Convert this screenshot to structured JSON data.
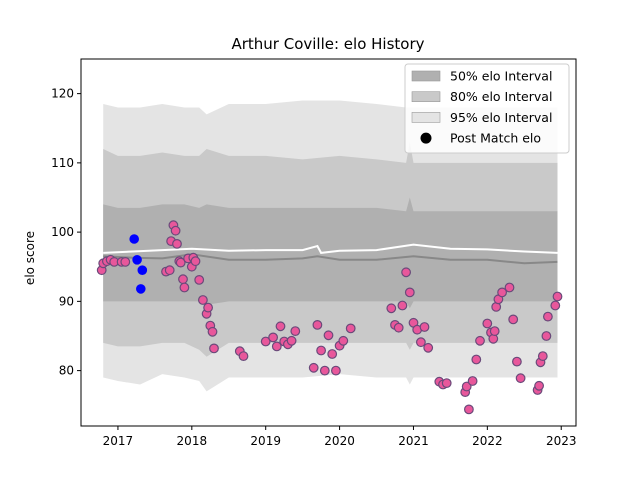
{
  "chart_data": {
    "type": "scatter",
    "title": "Arthur Coville: elo History",
    "xlabel": "",
    "ylabel": "elo score",
    "xlim": [
      2016.5,
      2023.2
    ],
    "ylim": [
      72,
      125
    ],
    "x_ticks": [
      2017,
      2018,
      2019,
      2020,
      2021,
      2022,
      2023
    ],
    "x_tick_labels": [
      "2017",
      "2018",
      "2019",
      "2020",
      "2021",
      "2022",
      "2023"
    ],
    "y_ticks": [
      80,
      90,
      100,
      110,
      120
    ],
    "y_tick_labels": [
      "80",
      "90",
      "100",
      "110",
      "120"
    ],
    "grid": false,
    "legend_position": "top-right",
    "colors": {
      "band_50": "#b0b0b0",
      "band_80": "#c9c9c9",
      "band_95": "#e4e4e4",
      "median_line": "#888888",
      "mean_line": "#ffffff",
      "post_match": "#e8579b",
      "post_match_edge": "#6a4a7a",
      "highlight": "#0000ff"
    },
    "legend": [
      {
        "label": "50% elo Interval",
        "kind": "band_50"
      },
      {
        "label": "80% elo Interval",
        "kind": "band_80"
      },
      {
        "label": "95% elo Interval",
        "kind": "band_95"
      },
      {
        "label": "Post Match elo",
        "kind": "marker"
      }
    ],
    "bands": {
      "x": [
        2016.8,
        2017.0,
        2017.3,
        2017.6,
        2017.9,
        2018.1,
        2018.2,
        2018.5,
        2019.0,
        2019.5,
        2020.0,
        2020.5,
        2020.9,
        2020.95,
        2021.0,
        2021.5,
        2022.0,
        2022.5,
        2022.95
      ],
      "p95_hi": [
        118.5,
        118,
        118,
        118.5,
        118,
        118,
        117,
        118.5,
        118.5,
        119,
        119,
        118.5,
        118,
        118,
        118,
        118,
        118,
        118,
        118
      ],
      "p80_hi": [
        112,
        111,
        111,
        111.5,
        111,
        111,
        112,
        111,
        111,
        110.5,
        111,
        110.5,
        110,
        113,
        110,
        110,
        110,
        110,
        110
      ],
      "p50_hi": [
        104,
        103.5,
        103.5,
        104,
        104,
        103.5,
        104,
        103.5,
        103.5,
        103.5,
        103.5,
        103.5,
        103,
        105,
        103,
        103,
        103,
        103,
        103
      ],
      "p50_lo": [
        90,
        90,
        90,
        90,
        90,
        90,
        89.5,
        90,
        90,
        90,
        90,
        90,
        90,
        89,
        90,
        90,
        90,
        90,
        90
      ],
      "p80_lo": [
        84,
        83.5,
        83.5,
        84,
        84,
        83,
        82,
        84,
        84,
        84,
        84,
        84,
        84,
        83,
        84,
        84,
        84,
        84,
        84
      ],
      "p95_lo": [
        79,
        78.5,
        78,
        79.5,
        79,
        78.5,
        77,
        79,
        79,
        79,
        79.5,
        79,
        79,
        78,
        79,
        79,
        79,
        79,
        79
      ]
    },
    "median_line": {
      "x": [
        2016.8,
        2017.2,
        2017.6,
        2018.0,
        2018.5,
        2019.0,
        2019.5,
        2019.7,
        2020.0,
        2020.5,
        2021.0,
        2021.5,
        2022.0,
        2022.5,
        2022.95
      ],
      "y": [
        96.5,
        96.3,
        96.2,
        96.8,
        96,
        96,
        96.2,
        96.5,
        96,
        96,
        96.5,
        96,
        96,
        95.5,
        95.7
      ]
    },
    "mean_line": {
      "x": [
        2016.8,
        2017.2,
        2017.6,
        2018.0,
        2018.5,
        2019.0,
        2019.5,
        2019.7,
        2019.75,
        2020.0,
        2020.5,
        2021.0,
        2021.5,
        2022.0,
        2022.5,
        2022.95
      ],
      "y": [
        97,
        97.2,
        97.4,
        97.6,
        97.3,
        97.4,
        97.4,
        98,
        97,
        97.3,
        97.4,
        98.2,
        97.6,
        97.5,
        97.2,
        97
      ],
      "highlight_x": [
        2017.22,
        2017.26,
        2017.31,
        2017.33
      ],
      "highlight_y": [
        99,
        96,
        91.8,
        94.5
      ]
    },
    "post_match": {
      "x": [
        2016.78,
        2016.8,
        2016.85,
        2016.9,
        2016.95,
        2017.05,
        2017.1,
        2017.65,
        2017.7,
        2017.72,
        2017.75,
        2017.78,
        2017.8,
        2017.83,
        2017.85,
        2017.88,
        2017.9,
        2017.95,
        2018.0,
        2018.02,
        2018.05,
        2018.1,
        2018.15,
        2018.2,
        2018.22,
        2018.25,
        2018.28,
        2018.3,
        2018.65,
        2018.7,
        2019.0,
        2019.1,
        2019.15,
        2019.2,
        2019.25,
        2019.3,
        2019.35,
        2019.4,
        2019.65,
        2019.7,
        2019.75,
        2019.8,
        2019.85,
        2019.9,
        2019.95,
        2020.0,
        2020.05,
        2020.15,
        2020.7,
        2020.75,
        2020.8,
        2020.85,
        2020.9,
        2020.95,
        2021.0,
        2021.05,
        2021.1,
        2021.15,
        2021.2,
        2021.35,
        2021.4,
        2021.45,
        2021.7,
        2021.72,
        2021.75,
        2021.8,
        2021.85,
        2021.9,
        2022.0,
        2022.05,
        2022.08,
        2022.1,
        2022.12,
        2022.15,
        2022.2,
        2022.3,
        2022.35,
        2022.4,
        2022.45,
        2022.68,
        2022.7,
        2022.72,
        2022.75,
        2022.8,
        2022.82,
        2022.92,
        2022.95
      ],
      "y": [
        94.5,
        95.5,
        95.8,
        96,
        95.7,
        95.7,
        95.7,
        94.3,
        94.5,
        98.7,
        101,
        100.2,
        98.3,
        95.8,
        95.6,
        93.2,
        92,
        96.2,
        95,
        96.3,
        95.8,
        93.1,
        90.2,
        88.2,
        89.1,
        86.5,
        85.6,
        83.2,
        82.8,
        82.1,
        84.2,
        84.8,
        83.5,
        86.4,
        84.2,
        83.8,
        84.3,
        85.7,
        80.4,
        86.6,
        82.9,
        80,
        85.1,
        82.4,
        80,
        83.6,
        84.3,
        86.1,
        89,
        86.6,
        86.2,
        89.4,
        94.2,
        91.3,
        86.9,
        85.9,
        84.1,
        86.3,
        83.3,
        78.4,
        78,
        78.2,
        76.9,
        77.7,
        74.4,
        78.5,
        81.6,
        84.3,
        86.8,
        85.5,
        84.6,
        85.7,
        89.2,
        90.3,
        91.3,
        92,
        87.4,
        81.3,
        78.9,
        77.2,
        77.8,
        81.2,
        82.1,
        85,
        87.8,
        89.4,
        90.7
      ]
    }
  }
}
